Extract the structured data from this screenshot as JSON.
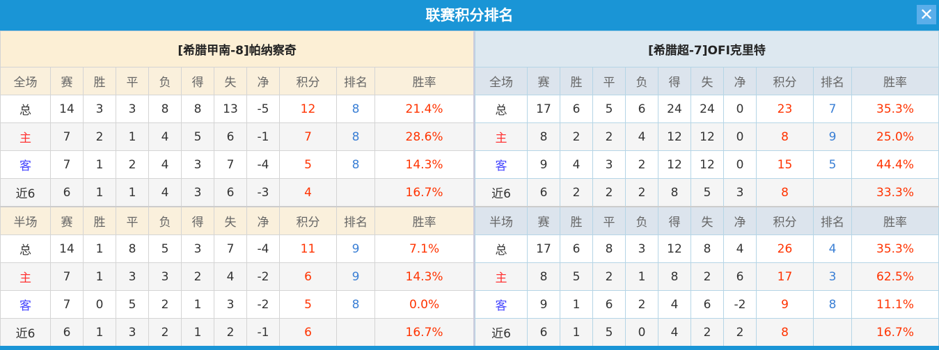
{
  "title": "联赛积分排名",
  "close_icon": "close-icon",
  "colors": {
    "accent": "#1a95d6",
    "points": "#ff3300",
    "rank": "#3a7fd5",
    "home": "#ff3333",
    "away": "#4444ff"
  },
  "teams": [
    {
      "name": "[希腊甲南-8]帕纳察奇",
      "full": {
        "headers": [
          "全场",
          "赛",
          "胜",
          "平",
          "负",
          "得",
          "失",
          "净",
          "积分",
          "排名",
          "胜率"
        ],
        "rows": [
          [
            "总",
            "14",
            "3",
            "3",
            "8",
            "8",
            "13",
            "-5",
            "12",
            "8",
            "21.4%"
          ],
          [
            "主",
            "7",
            "2",
            "1",
            "4",
            "5",
            "6",
            "-1",
            "7",
            "8",
            "28.6%"
          ],
          [
            "客",
            "7",
            "1",
            "2",
            "4",
            "3",
            "7",
            "-4",
            "5",
            "8",
            "14.3%"
          ],
          [
            "近6",
            "6",
            "1",
            "1",
            "4",
            "3",
            "6",
            "-3",
            "4",
            "",
            "16.7%"
          ]
        ]
      },
      "half": {
        "headers": [
          "半场",
          "赛",
          "胜",
          "平",
          "负",
          "得",
          "失",
          "净",
          "积分",
          "排名",
          "胜率"
        ],
        "rows": [
          [
            "总",
            "14",
            "1",
            "8",
            "5",
            "3",
            "7",
            "-4",
            "11",
            "9",
            "7.1%"
          ],
          [
            "主",
            "7",
            "1",
            "3",
            "3",
            "2",
            "4",
            "-2",
            "6",
            "9",
            "14.3%"
          ],
          [
            "客",
            "7",
            "0",
            "5",
            "2",
            "1",
            "3",
            "-2",
            "5",
            "8",
            "0.0%"
          ],
          [
            "近6",
            "6",
            "1",
            "3",
            "2",
            "1",
            "2",
            "-1",
            "6",
            "",
            "16.7%"
          ]
        ]
      }
    },
    {
      "name": "[希腊超-7]OFI克里特",
      "full": {
        "headers": [
          "全场",
          "赛",
          "胜",
          "平",
          "负",
          "得",
          "失",
          "净",
          "积分",
          "排名",
          "胜率"
        ],
        "rows": [
          [
            "总",
            "17",
            "6",
            "5",
            "6",
            "24",
            "24",
            "0",
            "23",
            "7",
            "35.3%"
          ],
          [
            "主",
            "8",
            "2",
            "2",
            "4",
            "12",
            "12",
            "0",
            "8",
            "9",
            "25.0%"
          ],
          [
            "客",
            "9",
            "4",
            "3",
            "2",
            "12",
            "12",
            "0",
            "15",
            "5",
            "44.4%"
          ],
          [
            "近6",
            "6",
            "2",
            "2",
            "2",
            "8",
            "5",
            "3",
            "8",
            "",
            "33.3%"
          ]
        ]
      },
      "half": {
        "headers": [
          "半场",
          "赛",
          "胜",
          "平",
          "负",
          "得",
          "失",
          "净",
          "积分",
          "排名",
          "胜率"
        ],
        "rows": [
          [
            "总",
            "17",
            "6",
            "8",
            "3",
            "12",
            "8",
            "4",
            "26",
            "4",
            "35.3%"
          ],
          [
            "主",
            "8",
            "5",
            "2",
            "1",
            "8",
            "2",
            "6",
            "17",
            "3",
            "62.5%"
          ],
          [
            "客",
            "9",
            "1",
            "6",
            "2",
            "4",
            "6",
            "-2",
            "9",
            "8",
            "11.1%"
          ],
          [
            "近6",
            "6",
            "1",
            "5",
            "0",
            "4",
            "2",
            "2",
            "8",
            "",
            "16.7%"
          ]
        ]
      }
    }
  ]
}
